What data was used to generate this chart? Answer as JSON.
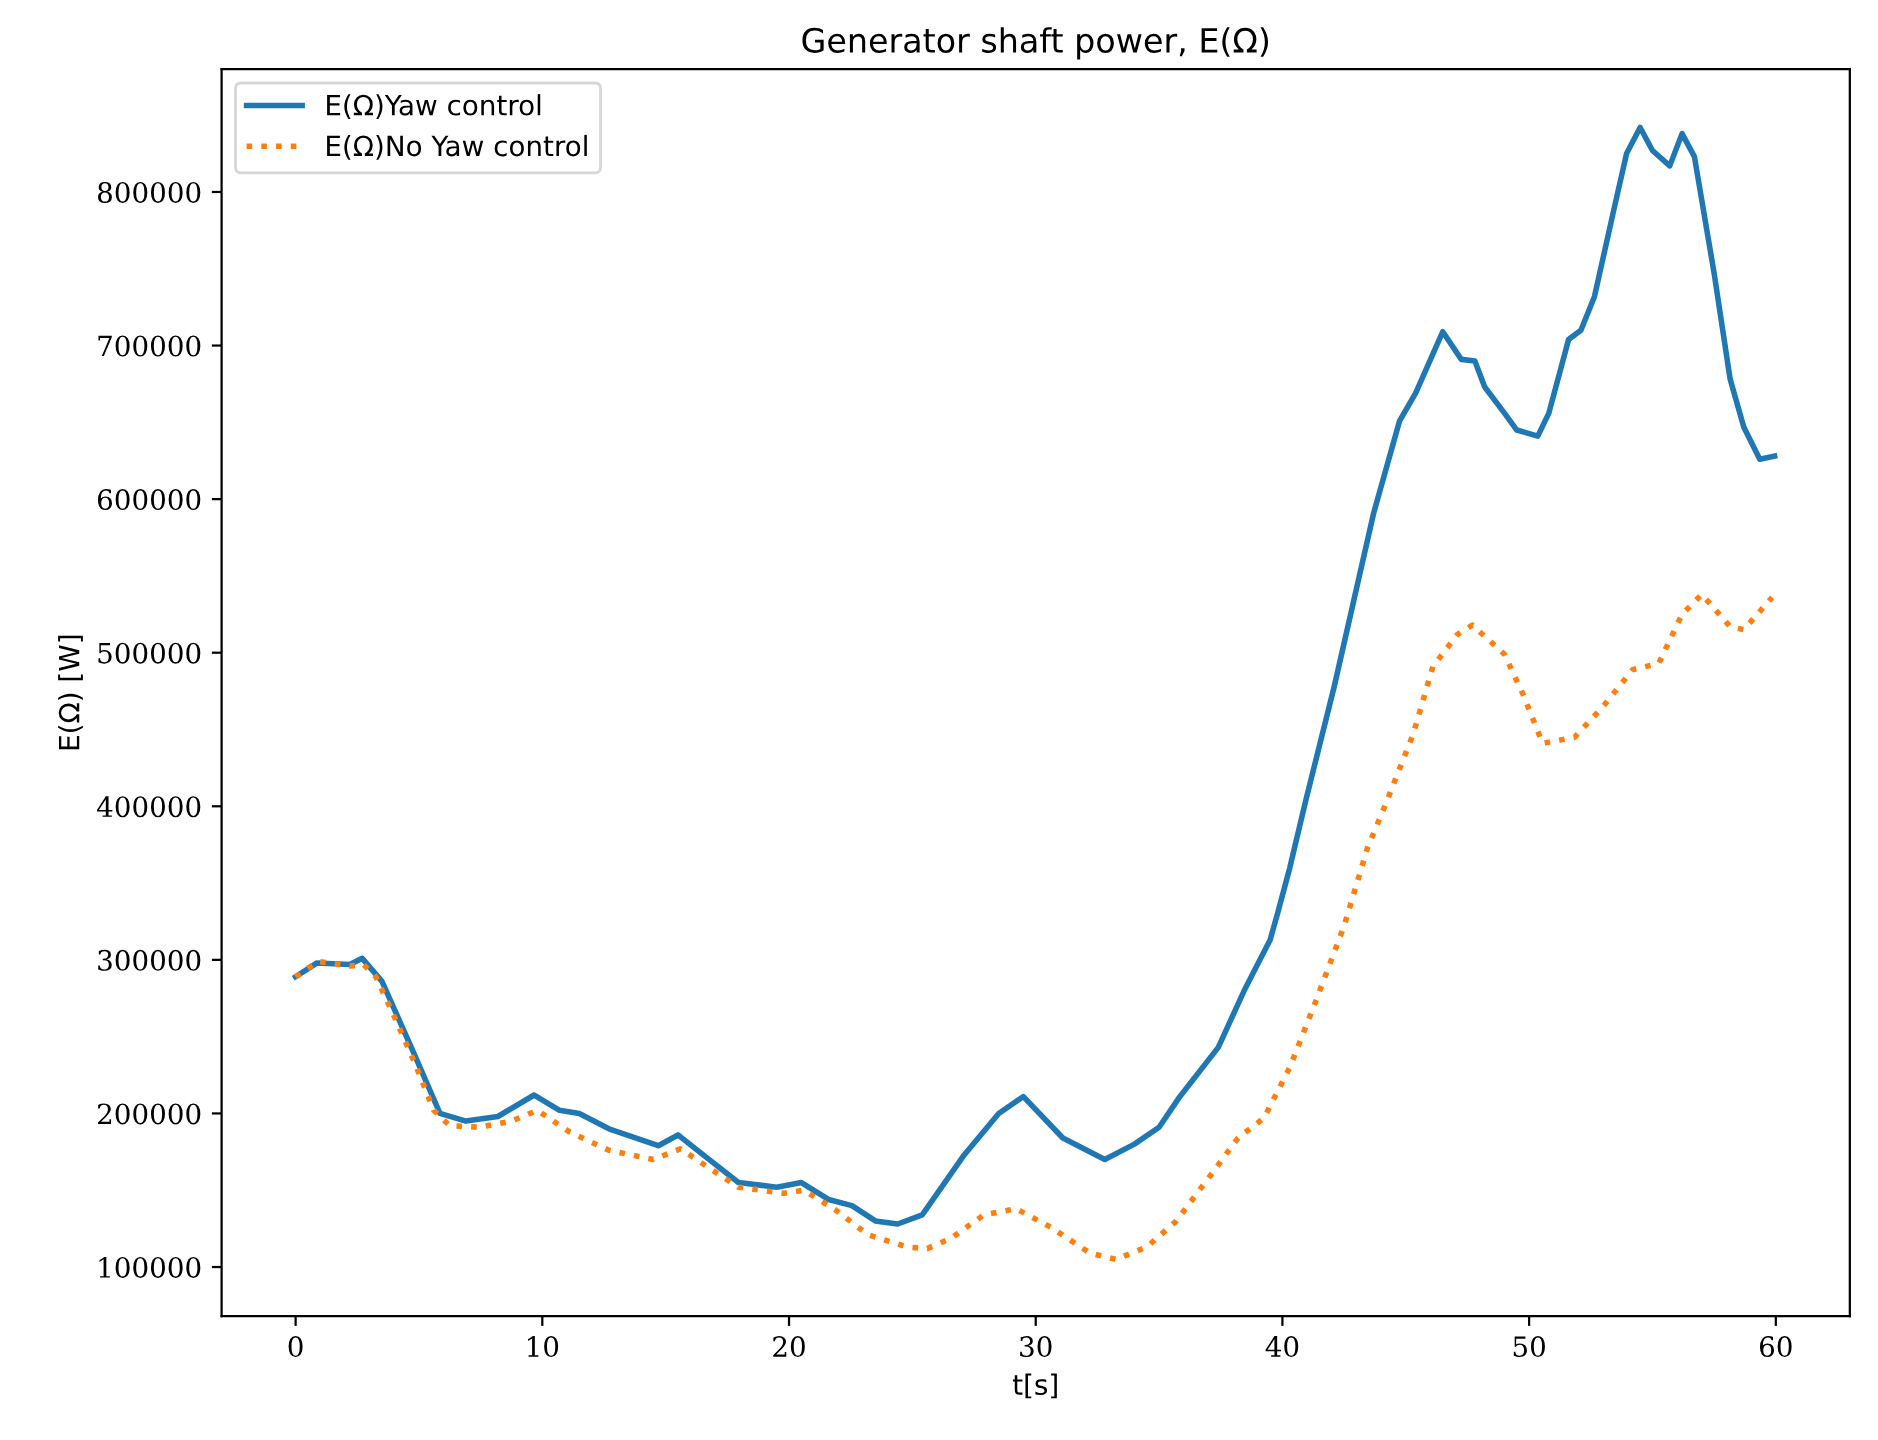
{
  "chart_data": {
    "type": "line",
    "title": "Generator shaft power, E(Ω)",
    "xlabel": "t[s]",
    "ylabel": "E(Ω) [W]",
    "xlim": [
      -3,
      63
    ],
    "xticks": [
      0,
      10,
      20,
      30,
      40,
      50,
      60
    ],
    "ylim": [
      68000,
      880000
    ],
    "yticks": [
      100000,
      200000,
      300000,
      400000,
      500000,
      600000,
      700000,
      800000
    ],
    "grid": false,
    "legend": "top left",
    "series": [
      {
        "name": "E(Ω)Yaw control",
        "color": "#1f77b4",
        "line_style": "solid",
        "x": [
          0,
          0.87,
          2.2,
          2.7,
          3.5,
          4.8,
          5.85,
          6.9,
          8.2,
          9.67,
          10.7,
          11.5,
          12.7,
          14.7,
          15.5,
          16.6,
          17.95,
          19.5,
          20.5,
          21.6,
          22.55,
          23.5,
          24.4,
          25.4,
          27.1,
          28.5,
          29.5,
          31.1,
          32.8,
          34.0,
          35.0,
          35.8,
          37.4,
          38.45,
          39.5,
          39.8,
          40.3,
          40.95,
          42.1,
          43.7,
          44.75,
          45.4,
          46.5,
          47.25,
          47.8,
          48.2,
          49.0,
          49.5,
          50.35,
          50.8,
          51.6,
          52.1,
          52.65,
          53.4,
          53.95,
          54.5,
          55.0,
          55.7,
          56.2,
          56.7,
          57.5,
          58.15,
          58.7,
          59.35,
          59.95
        ],
        "values": [
          289000,
          298000,
          297000,
          301000,
          286000,
          239000,
          200000,
          195000,
          198000,
          212000,
          202000,
          200000,
          190000,
          179000,
          186000,
          172000,
          155000,
          152000,
          155000,
          144000,
          140000,
          130000,
          128000,
          134000,
          173000,
          200000,
          211000,
          184000,
          170000,
          180000,
          191000,
          210000,
          243000,
          280000,
          313000,
          330000,
          360000,
          404000,
          478000,
          591000,
          651000,
          669000,
          709000,
          691000,
          690000,
          673000,
          656000,
          645000,
          641000,
          656000,
          704000,
          710000,
          732000,
          786000,
          825000,
          842000,
          827000,
          817000,
          838000,
          823000,
          747000,
          678000,
          647000,
          626000,
          628000
        ]
      },
      {
        "name": "E(Ω)No Yaw control",
        "color": "#ff7f0e",
        "line_style": "dotted",
        "x": [
          0,
          0.9,
          2.2,
          2.75,
          3.25,
          4.0,
          4.8,
          5.6,
          6.25,
          7.45,
          8.75,
          9.8,
          11.1,
          12.7,
          14.5,
          15.6,
          16.9,
          17.95,
          19.8,
          20.6,
          21.9,
          23.2,
          24.8,
          25.6,
          26.6,
          27.9,
          29.2,
          30.6,
          32.2,
          33.25,
          34.5,
          35.7,
          37.1,
          38.2,
          39.25,
          40.3,
          41.35,
          42.5,
          43.45,
          44.2,
          45.3,
          46.1,
          47.1,
          47.7,
          49.0,
          49.75,
          50.55,
          51.85,
          53.0,
          54.2,
          55.25,
          56.2,
          57.0,
          58.15,
          58.7,
          59.85
        ],
        "values": [
          289000,
          299000,
          296000,
          297000,
          289000,
          263000,
          234000,
          202000,
          192000,
          191000,
          195000,
          202000,
          188000,
          176000,
          170000,
          177000,
          163000,
          152000,
          148000,
          150000,
          137000,
          121000,
          113000,
          112000,
          119000,
          134000,
          138000,
          126000,
          109000,
          105000,
          113000,
          130000,
          160000,
          184000,
          197000,
          230000,
          273000,
          322000,
          373000,
          402000,
          447000,
          491000,
          512000,
          518000,
          499000,
          473000,
          441000,
          445000,
          465000,
          489000,
          493000,
          525000,
          538000,
          517000,
          515000,
          536000
        ]
      }
    ]
  }
}
